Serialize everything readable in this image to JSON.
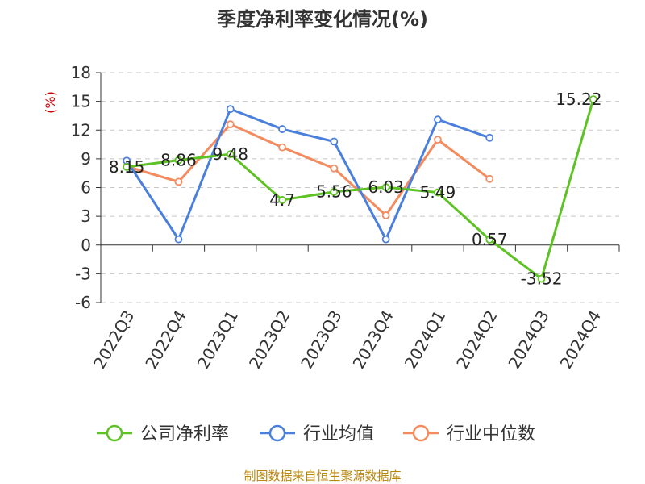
{
  "chart_data": {
    "type": "line",
    "title": "季度净利率变化情况(%)",
    "ylabel": "(%)",
    "categories": [
      "2022Q3",
      "2022Q4",
      "2023Q1",
      "2023Q2",
      "2023Q3",
      "2023Q4",
      "2024Q1",
      "2024Q2",
      "2024Q3",
      "2024Q4"
    ],
    "ylim": [
      -6,
      18
    ],
    "yticks": [
      18,
      15,
      12,
      9,
      6,
      3,
      0,
      -3,
      -6
    ],
    "grid": true,
    "legend_position": "bottom",
    "series": [
      {
        "name": "公司净利率",
        "color": "#5ec224",
        "values": [
          8.15,
          8.86,
          9.48,
          4.7,
          5.56,
          6.03,
          5.49,
          0.57,
          -3.52,
          15.22
        ],
        "labels": [
          "8.15",
          "8.86",
          "9.48",
          "4.7",
          "5.56",
          "6.03",
          "5.49",
          "0.57",
          "-3.52",
          "15.22"
        ]
      },
      {
        "name": "行业均值",
        "color": "#4a7fdc",
        "values": [
          8.8,
          0.6,
          14.2,
          12.1,
          10.8,
          0.6,
          13.1,
          11.2,
          null,
          null
        ]
      },
      {
        "name": "行业中位数",
        "color": "#f48b5f",
        "values": [
          8.2,
          6.6,
          12.6,
          10.2,
          8.0,
          3.1,
          11.0,
          6.9,
          null,
          null
        ]
      }
    ],
    "source": "制图数据来自恒生聚源数据库",
    "source_color": "#b8860b",
    "ylabel_color": "#cc0000"
  }
}
